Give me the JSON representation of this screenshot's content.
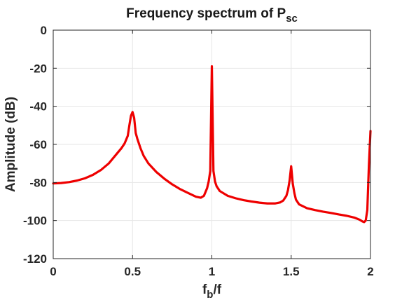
{
  "chart_data": {
    "type": "line",
    "title": "Frequency spectrum of P",
    "title_subscript": "sc",
    "xlabel": "f",
    "xlabel_subscript": "b",
    "xlabel_suffix": "/f",
    "ylabel": "Amplitude (dB)",
    "xlim": [
      0,
      2
    ],
    "ylim": [
      -120,
      0
    ],
    "xticks": [
      0,
      0.5,
      1,
      1.5,
      2
    ],
    "xtick_labels": [
      "0",
      "0.5",
      "1",
      "1.5",
      "2"
    ],
    "yticks": [
      0,
      -20,
      -40,
      -60,
      -80,
      -100,
      -120
    ],
    "ytick_labels": [
      "0",
      "-20",
      "-40",
      "-60",
      "-80",
      "-100",
      "-120"
    ],
    "grid": true,
    "series": [
      {
        "color": "#ee0000",
        "x": [
          0,
          0.05,
          0.1,
          0.15,
          0.2,
          0.25,
          0.3,
          0.35,
          0.4,
          0.43,
          0.45,
          0.47,
          0.48,
          0.49,
          0.5,
          0.51,
          0.52,
          0.53,
          0.55,
          0.57,
          0.6,
          0.65,
          0.7,
          0.75,
          0.8,
          0.85,
          0.9,
          0.93,
          0.95,
          0.97,
          0.98,
          0.99,
          1.0,
          1.01,
          1.02,
          1.03,
          1.05,
          1.1,
          1.15,
          1.2,
          1.25,
          1.3,
          1.35,
          1.4,
          1.43,
          1.45,
          1.47,
          1.48,
          1.49,
          1.5,
          1.51,
          1.52,
          1.53,
          1.55,
          1.6,
          1.65,
          1.7,
          1.75,
          1.8,
          1.85,
          1.9,
          1.93,
          1.95,
          1.96,
          1.97,
          1.98,
          1.99,
          2.0
        ],
        "y": [
          -80.5,
          -80.3,
          -79.8,
          -79,
          -77.8,
          -76,
          -73.5,
          -70,
          -65,
          -62,
          -59.5,
          -55.5,
          -50,
          -45,
          -43,
          -46,
          -54,
          -57,
          -62,
          -66,
          -70,
          -74.5,
          -78,
          -81,
          -83.5,
          -85.5,
          -87.5,
          -88,
          -87,
          -83,
          -79.5,
          -74,
          -19,
          -74,
          -79.5,
          -82,
          -84.5,
          -87,
          -88.3,
          -89.3,
          -90,
          -90.6,
          -91,
          -91,
          -90.5,
          -89.5,
          -87,
          -84,
          -79,
          -71.5,
          -80.5,
          -85.5,
          -89,
          -91.5,
          -93.5,
          -94.5,
          -95.3,
          -96,
          -96.8,
          -97.5,
          -98.5,
          -99.5,
          -100.5,
          -100.8,
          -100,
          -94.5,
          -71,
          -53
        ]
      }
    ]
  }
}
